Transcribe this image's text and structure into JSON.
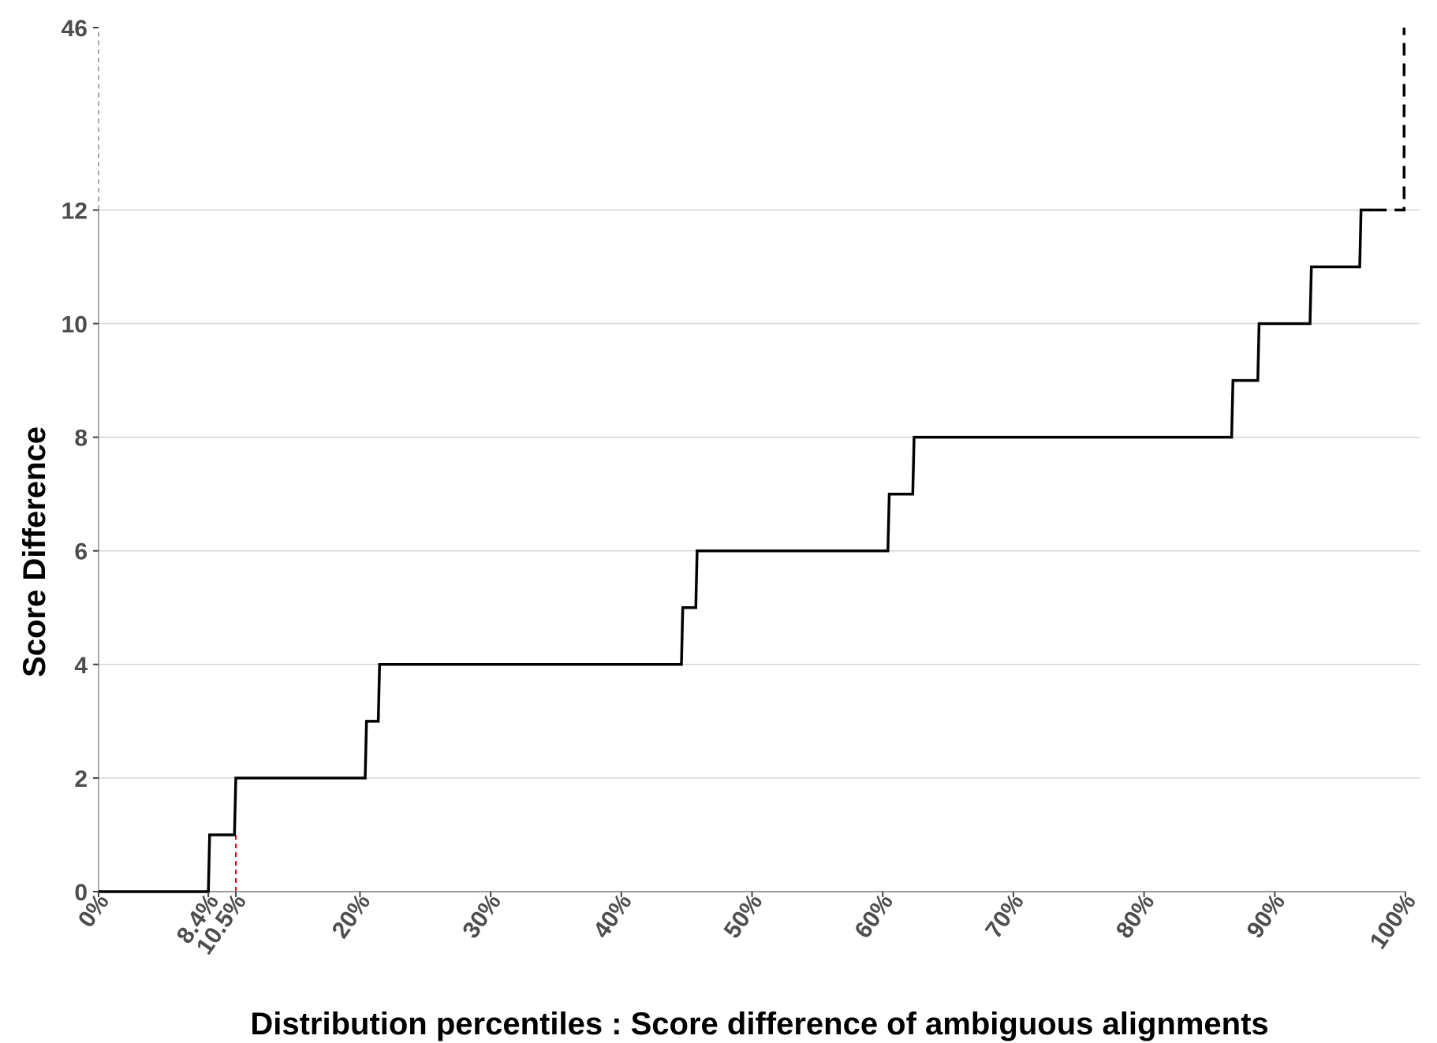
{
  "chart_data": {
    "type": "line",
    "step": true,
    "xlabel": "Distribution percentiles : Score difference of ambiguous alignments",
    "ylabel": "Score Difference",
    "x_unit": "percent",
    "xlim": [
      0,
      100
    ],
    "ylim": [
      0,
      46
    ],
    "y_axis_break": {
      "from": 12,
      "to": 46
    },
    "x_ticks": [
      {
        "value": 0,
        "label": "0%"
      },
      {
        "value": 8.4,
        "label": "8.4%"
      },
      {
        "value": 10.5,
        "label": "10.5%"
      },
      {
        "value": 20,
        "label": "20%"
      },
      {
        "value": 30,
        "label": "30%"
      },
      {
        "value": 40,
        "label": "40%"
      },
      {
        "value": 50,
        "label": "50%"
      },
      {
        "value": 60,
        "label": "60%"
      },
      {
        "value": 70,
        "label": "70%"
      },
      {
        "value": 80,
        "label": "80%"
      },
      {
        "value": 90,
        "label": "90%"
      },
      {
        "value": 100,
        "label": "100%"
      }
    ],
    "y_ticks": [
      {
        "value": 0,
        "label": "0"
      },
      {
        "value": 2,
        "label": "2"
      },
      {
        "value": 4,
        "label": "4"
      },
      {
        "value": 6,
        "label": "6"
      },
      {
        "value": 8,
        "label": "8"
      },
      {
        "value": 10,
        "label": "10"
      },
      {
        "value": 12,
        "label": "12"
      },
      {
        "value": 46,
        "label": "46"
      }
    ],
    "grid": "horizontal",
    "series": [
      {
        "color": "#000000",
        "style": "solid",
        "points": [
          {
            "x": 0,
            "y": 0
          },
          {
            "x": 8.4,
            "y": 0
          },
          {
            "x": 8.5,
            "y": 1
          },
          {
            "x": 10.4,
            "y": 1
          },
          {
            "x": 10.5,
            "y": 2
          },
          {
            "x": 20.4,
            "y": 2
          },
          {
            "x": 20.5,
            "y": 3
          },
          {
            "x": 21.4,
            "y": 3
          },
          {
            "x": 21.5,
            "y": 4
          },
          {
            "x": 44.6,
            "y": 4
          },
          {
            "x": 44.7,
            "y": 5
          },
          {
            "x": 45.7,
            "y": 5
          },
          {
            "x": 45.8,
            "y": 6
          },
          {
            "x": 60.4,
            "y": 6
          },
          {
            "x": 60.5,
            "y": 7
          },
          {
            "x": 62.3,
            "y": 7
          },
          {
            "x": 62.4,
            "y": 8
          },
          {
            "x": 86.7,
            "y": 8
          },
          {
            "x": 86.8,
            "y": 9
          },
          {
            "x": 88.7,
            "y": 9
          },
          {
            "x": 88.8,
            "y": 10
          },
          {
            "x": 92.7,
            "y": 10
          },
          {
            "x": 92.8,
            "y": 11
          },
          {
            "x": 96.5,
            "y": 11
          },
          {
            "x": 96.6,
            "y": 12
          },
          {
            "x": 97.6,
            "y": 12
          }
        ]
      },
      {
        "color": "#000000",
        "style": "dashed",
        "points": [
          {
            "x": 97.6,
            "y": 12
          },
          {
            "x": 99.9,
            "y": 12
          },
          {
            "x": 99.9,
            "y": 46
          }
        ]
      }
    ],
    "reference_lines": [
      {
        "orientation": "vertical",
        "x": 10.5,
        "y_from": 0,
        "y_to": 1,
        "color": "#ff0000",
        "style": "dashed"
      },
      {
        "orientation": "vertical",
        "x": 0,
        "y_from": 12,
        "y_to": 46,
        "color": "#aaaaaa",
        "style": "dashed"
      }
    ]
  }
}
